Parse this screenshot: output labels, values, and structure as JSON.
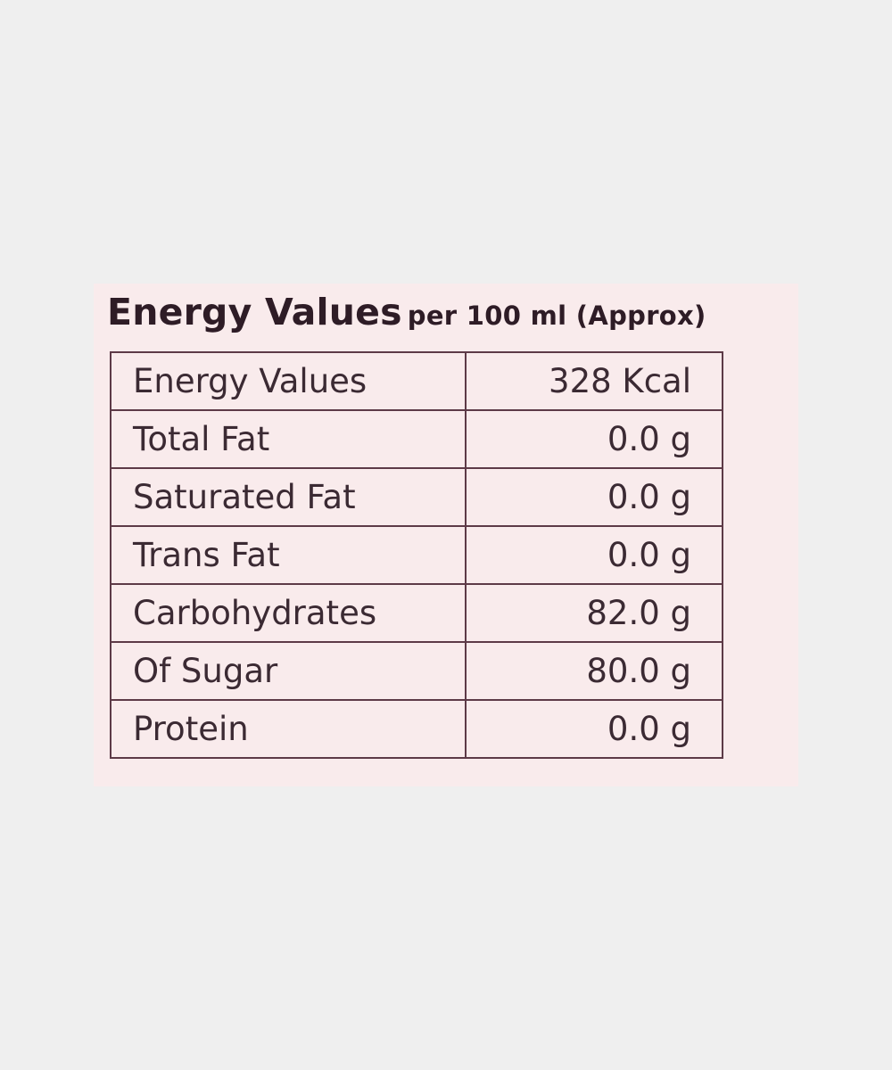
{
  "heading": {
    "title": "Energy Values",
    "subtitle": "per 100 ml (Approx)"
  },
  "nutrition_rows": [
    {
      "name": "Energy Values",
      "value": "328 Kcal"
    },
    {
      "name": "Total Fat",
      "value": "0.0 g"
    },
    {
      "name": "Saturated Fat",
      "value": "0.0 g"
    },
    {
      "name": "Trans Fat",
      "value": "0.0 g"
    },
    {
      "name": "Carbohydrates",
      "value": "82.0 g"
    },
    {
      "name": "Of Sugar",
      "value": "80.0 g"
    },
    {
      "name": "Protein",
      "value": "0.0 g"
    }
  ],
  "colors": {
    "page_background": "#efefef",
    "label_background": "#f9ebec",
    "text": "#3b2a33",
    "border": "#5d3a47"
  }
}
